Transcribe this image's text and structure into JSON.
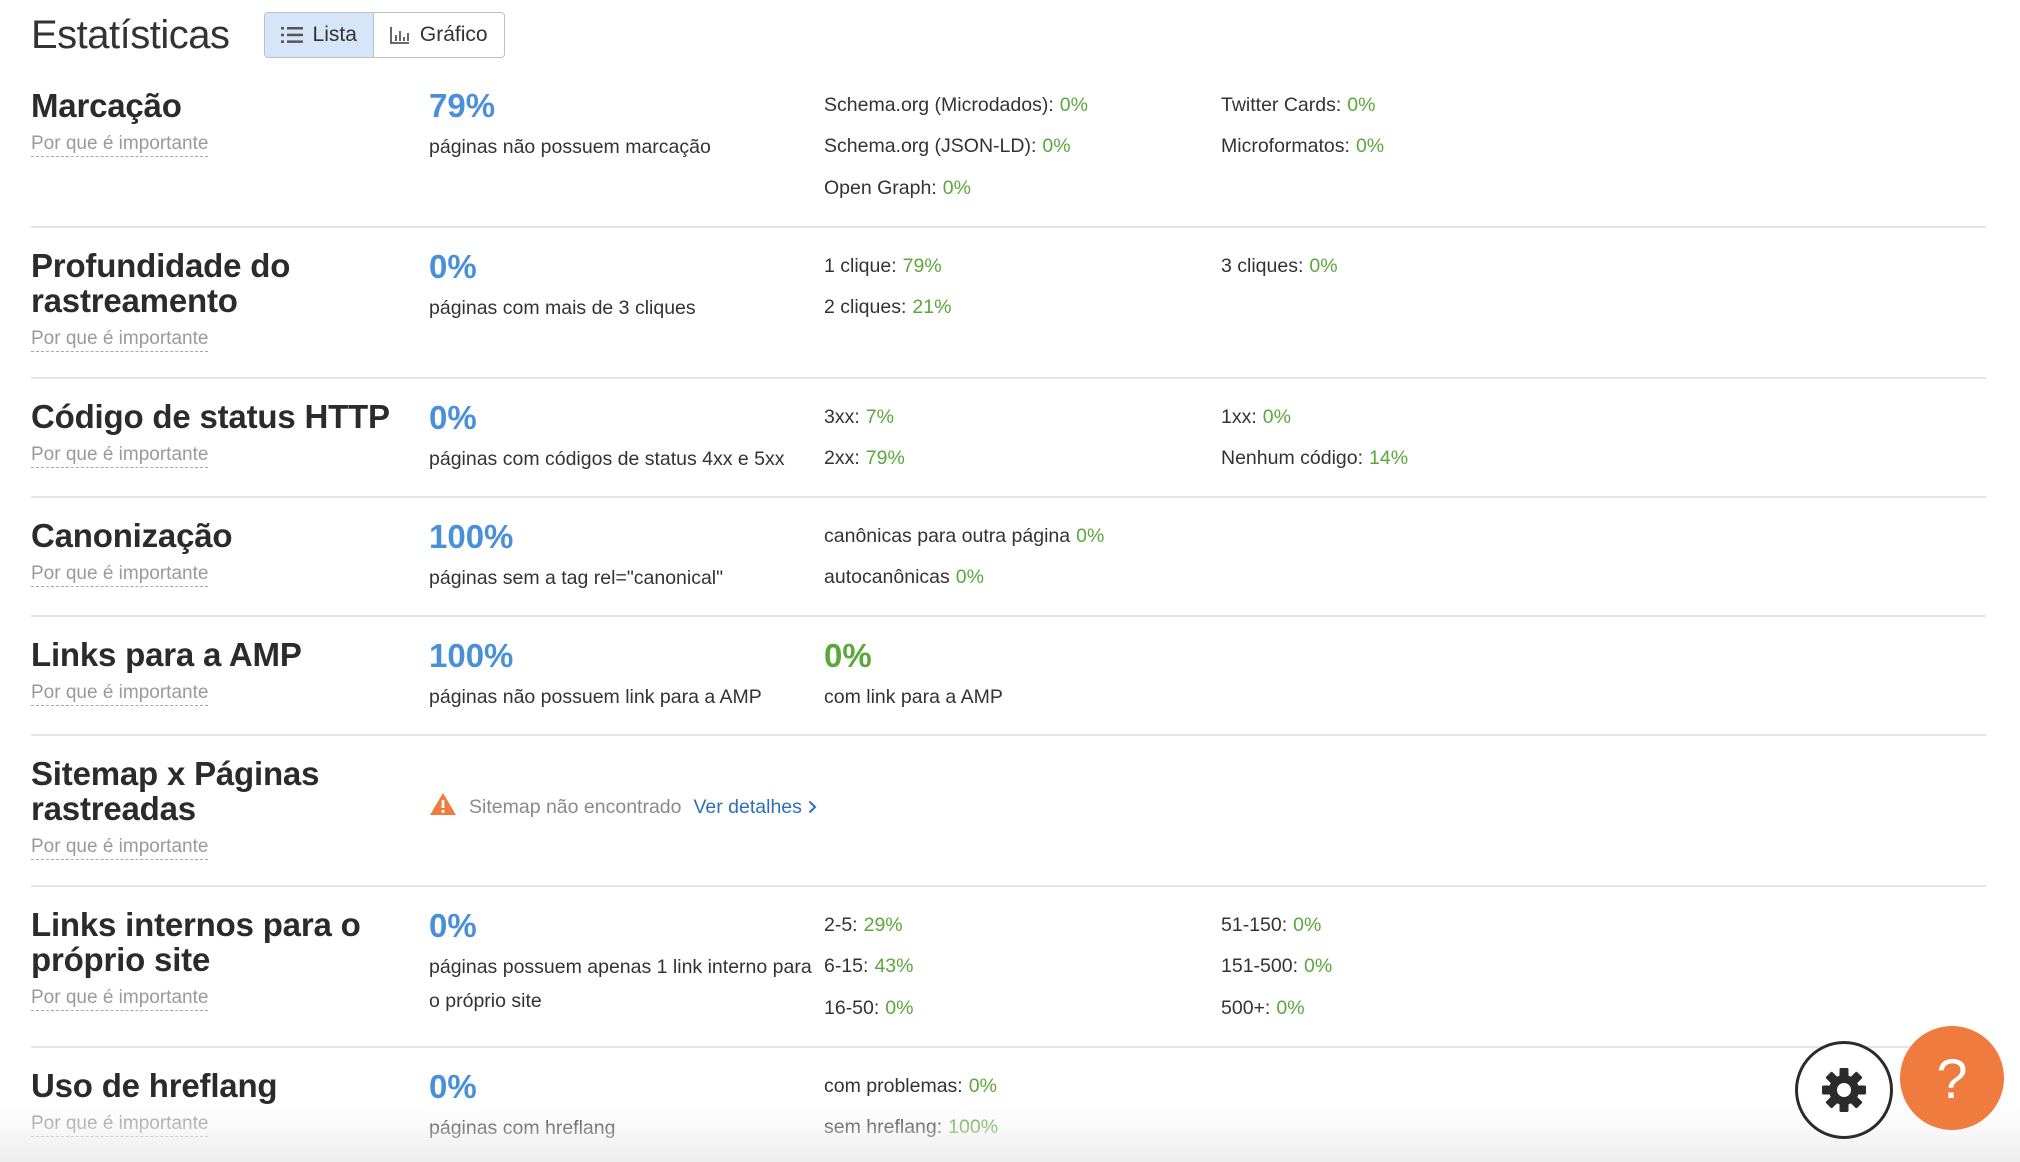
{
  "header": {
    "title": "Estatísticas",
    "view_toggle": {
      "list_label": "Lista",
      "chart_label": "Gráfico",
      "active": "list"
    }
  },
  "why_label": "Por que é importante",
  "sections": {
    "markup": {
      "title": "Marcação",
      "big_value": "79%",
      "big_caption": "páginas não possuem marcação",
      "stats": [
        {
          "label": "Schema.org (Microdados):",
          "value": "0%"
        },
        {
          "label": "Schema.org (JSON-LD):",
          "value": "0%"
        },
        {
          "label": "Open Graph:",
          "value": "0%"
        },
        {
          "label": "Twitter Cards:",
          "value": "0%"
        },
        {
          "label": "Microformatos:",
          "value": "0%"
        }
      ]
    },
    "crawl_depth": {
      "title": "Profundidade do rastreamento",
      "big_value": "0%",
      "big_caption": "páginas com mais de 3 cliques",
      "stats": [
        {
          "label": "1 clique:",
          "value": "79%"
        },
        {
          "label": "2 cliques:",
          "value": "21%"
        },
        {
          "label": "3 cliques:",
          "value": "0%"
        }
      ]
    },
    "http_status": {
      "title": "Código de status HTTP",
      "big_value": "0%",
      "big_caption": "páginas com códigos de status 4xx e 5xx",
      "stats": [
        {
          "label": "3xx:",
          "value": "7%"
        },
        {
          "label": "2xx:",
          "value": "79%"
        },
        {
          "label": "1xx:",
          "value": "0%"
        },
        {
          "label": "Nenhum código:",
          "value": "14%"
        }
      ]
    },
    "canonical": {
      "title": "Canonização",
      "big_value": "100%",
      "big_caption": "páginas sem a tag rel=\"canonical\"",
      "stats": [
        {
          "label": "canônicas para outra página",
          "value": "0%"
        },
        {
          "label": "autocanônicas",
          "value": "0%"
        }
      ]
    },
    "amp": {
      "title": "Links para a AMP",
      "big_value": "100%",
      "big_caption": "páginas não possuem link para a AMP",
      "second_value": "0%",
      "second_caption": "com link para a AMP"
    },
    "sitemap": {
      "title": "Sitemap x Páginas rastreadas",
      "warning": "Sitemap não encontrado",
      "details_link": "Ver detalhes"
    },
    "internal_links": {
      "title": "Links internos para o próprio site",
      "big_value": "0%",
      "big_caption": "páginas possuem apenas 1 link interno para o próprio site",
      "stats": [
        {
          "label": "2-5:",
          "value": "29%"
        },
        {
          "label": "6-15:",
          "value": "43%"
        },
        {
          "label": "16-50:",
          "value": "0%"
        },
        {
          "label": "51-150:",
          "value": "0%"
        },
        {
          "label": "151-500:",
          "value": "0%"
        },
        {
          "label": "500+:",
          "value": "0%"
        }
      ]
    },
    "hreflang": {
      "title": "Uso de hreflang",
      "big_value": "0%",
      "big_caption": "páginas com hreflang",
      "stats": [
        {
          "label": "com problemas:",
          "value": "0%"
        },
        {
          "label": "sem hreflang:",
          "value": "100%"
        }
      ]
    }
  },
  "floating": {
    "settings_icon": "gear-icon",
    "help_glyph": "?"
  },
  "colors": {
    "accent_blue": "#4a90d9",
    "value_green": "#5aa73a",
    "help_orange": "#f07b3f",
    "link_blue": "#2e6fb7"
  }
}
